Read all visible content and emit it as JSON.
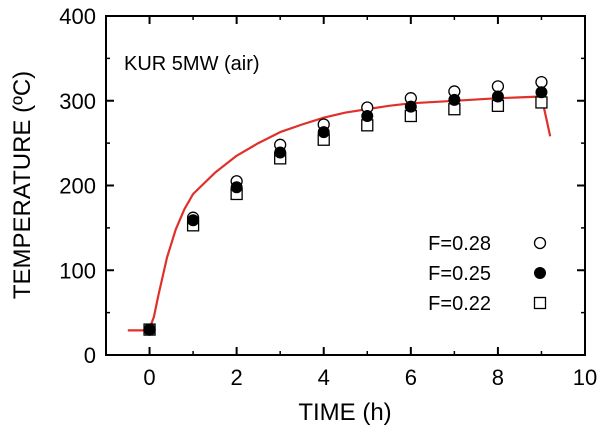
{
  "chart_data": {
    "type": "scatter",
    "title": "",
    "annotation": "KUR 5MW (air)",
    "xlabel": "TIME (h)",
    "ylabel": "TEMPERATURE (ºC)",
    "xlim": [
      -1,
      10
    ],
    "ylim": [
      0,
      400
    ],
    "xticks": [
      0,
      2,
      4,
      6,
      8,
      10
    ],
    "yticks": [
      0,
      100,
      200,
      300,
      400
    ],
    "xtick_labels": [
      "0",
      "2",
      "4",
      "6",
      "8",
      "10"
    ],
    "ytick_labels": [
      "0",
      "100",
      "200",
      "300",
      "400"
    ],
    "grid": false,
    "legend_position": "lower-right",
    "series": [
      {
        "name": "F=0.28",
        "marker": "open-circle",
        "x": [
          0,
          1,
          2,
          3,
          4,
          5,
          6,
          7,
          8,
          9
        ],
        "y": [
          30,
          162,
          205,
          248,
          272,
          292,
          303,
          311,
          317,
          322
        ]
      },
      {
        "name": "F=0.25",
        "marker": "filled-circle",
        "x": [
          0,
          1,
          2,
          3,
          4,
          5,
          6,
          7,
          8,
          9
        ],
        "y": [
          30,
          159,
          198,
          239,
          263,
          282,
          293,
          301,
          305,
          310
        ]
      },
      {
        "name": "F=0.22",
        "marker": "open-square",
        "x": [
          0,
          1,
          2,
          3,
          4,
          5,
          6,
          7,
          8,
          9
        ],
        "y": [
          30,
          153,
          190,
          232,
          254,
          271,
          282,
          290,
          294,
          298
        ]
      },
      {
        "marker": "line",
        "color": "#e0302a",
        "x": [
          -0.5,
          -0.1,
          0,
          0.1,
          0.2,
          0.4,
          0.6,
          0.8,
          1,
          1.5,
          2,
          2.5,
          3,
          3.5,
          4,
          4.5,
          5,
          5.5,
          6,
          7,
          8,
          8.5,
          9,
          9.2
        ],
        "y": [
          29,
          29,
          31,
          45,
          70,
          115,
          148,
          172,
          190,
          215,
          235,
          250,
          263,
          272,
          280,
          286,
          290,
          294,
          297,
          300,
          303,
          304,
          305,
          258
        ]
      }
    ]
  }
}
